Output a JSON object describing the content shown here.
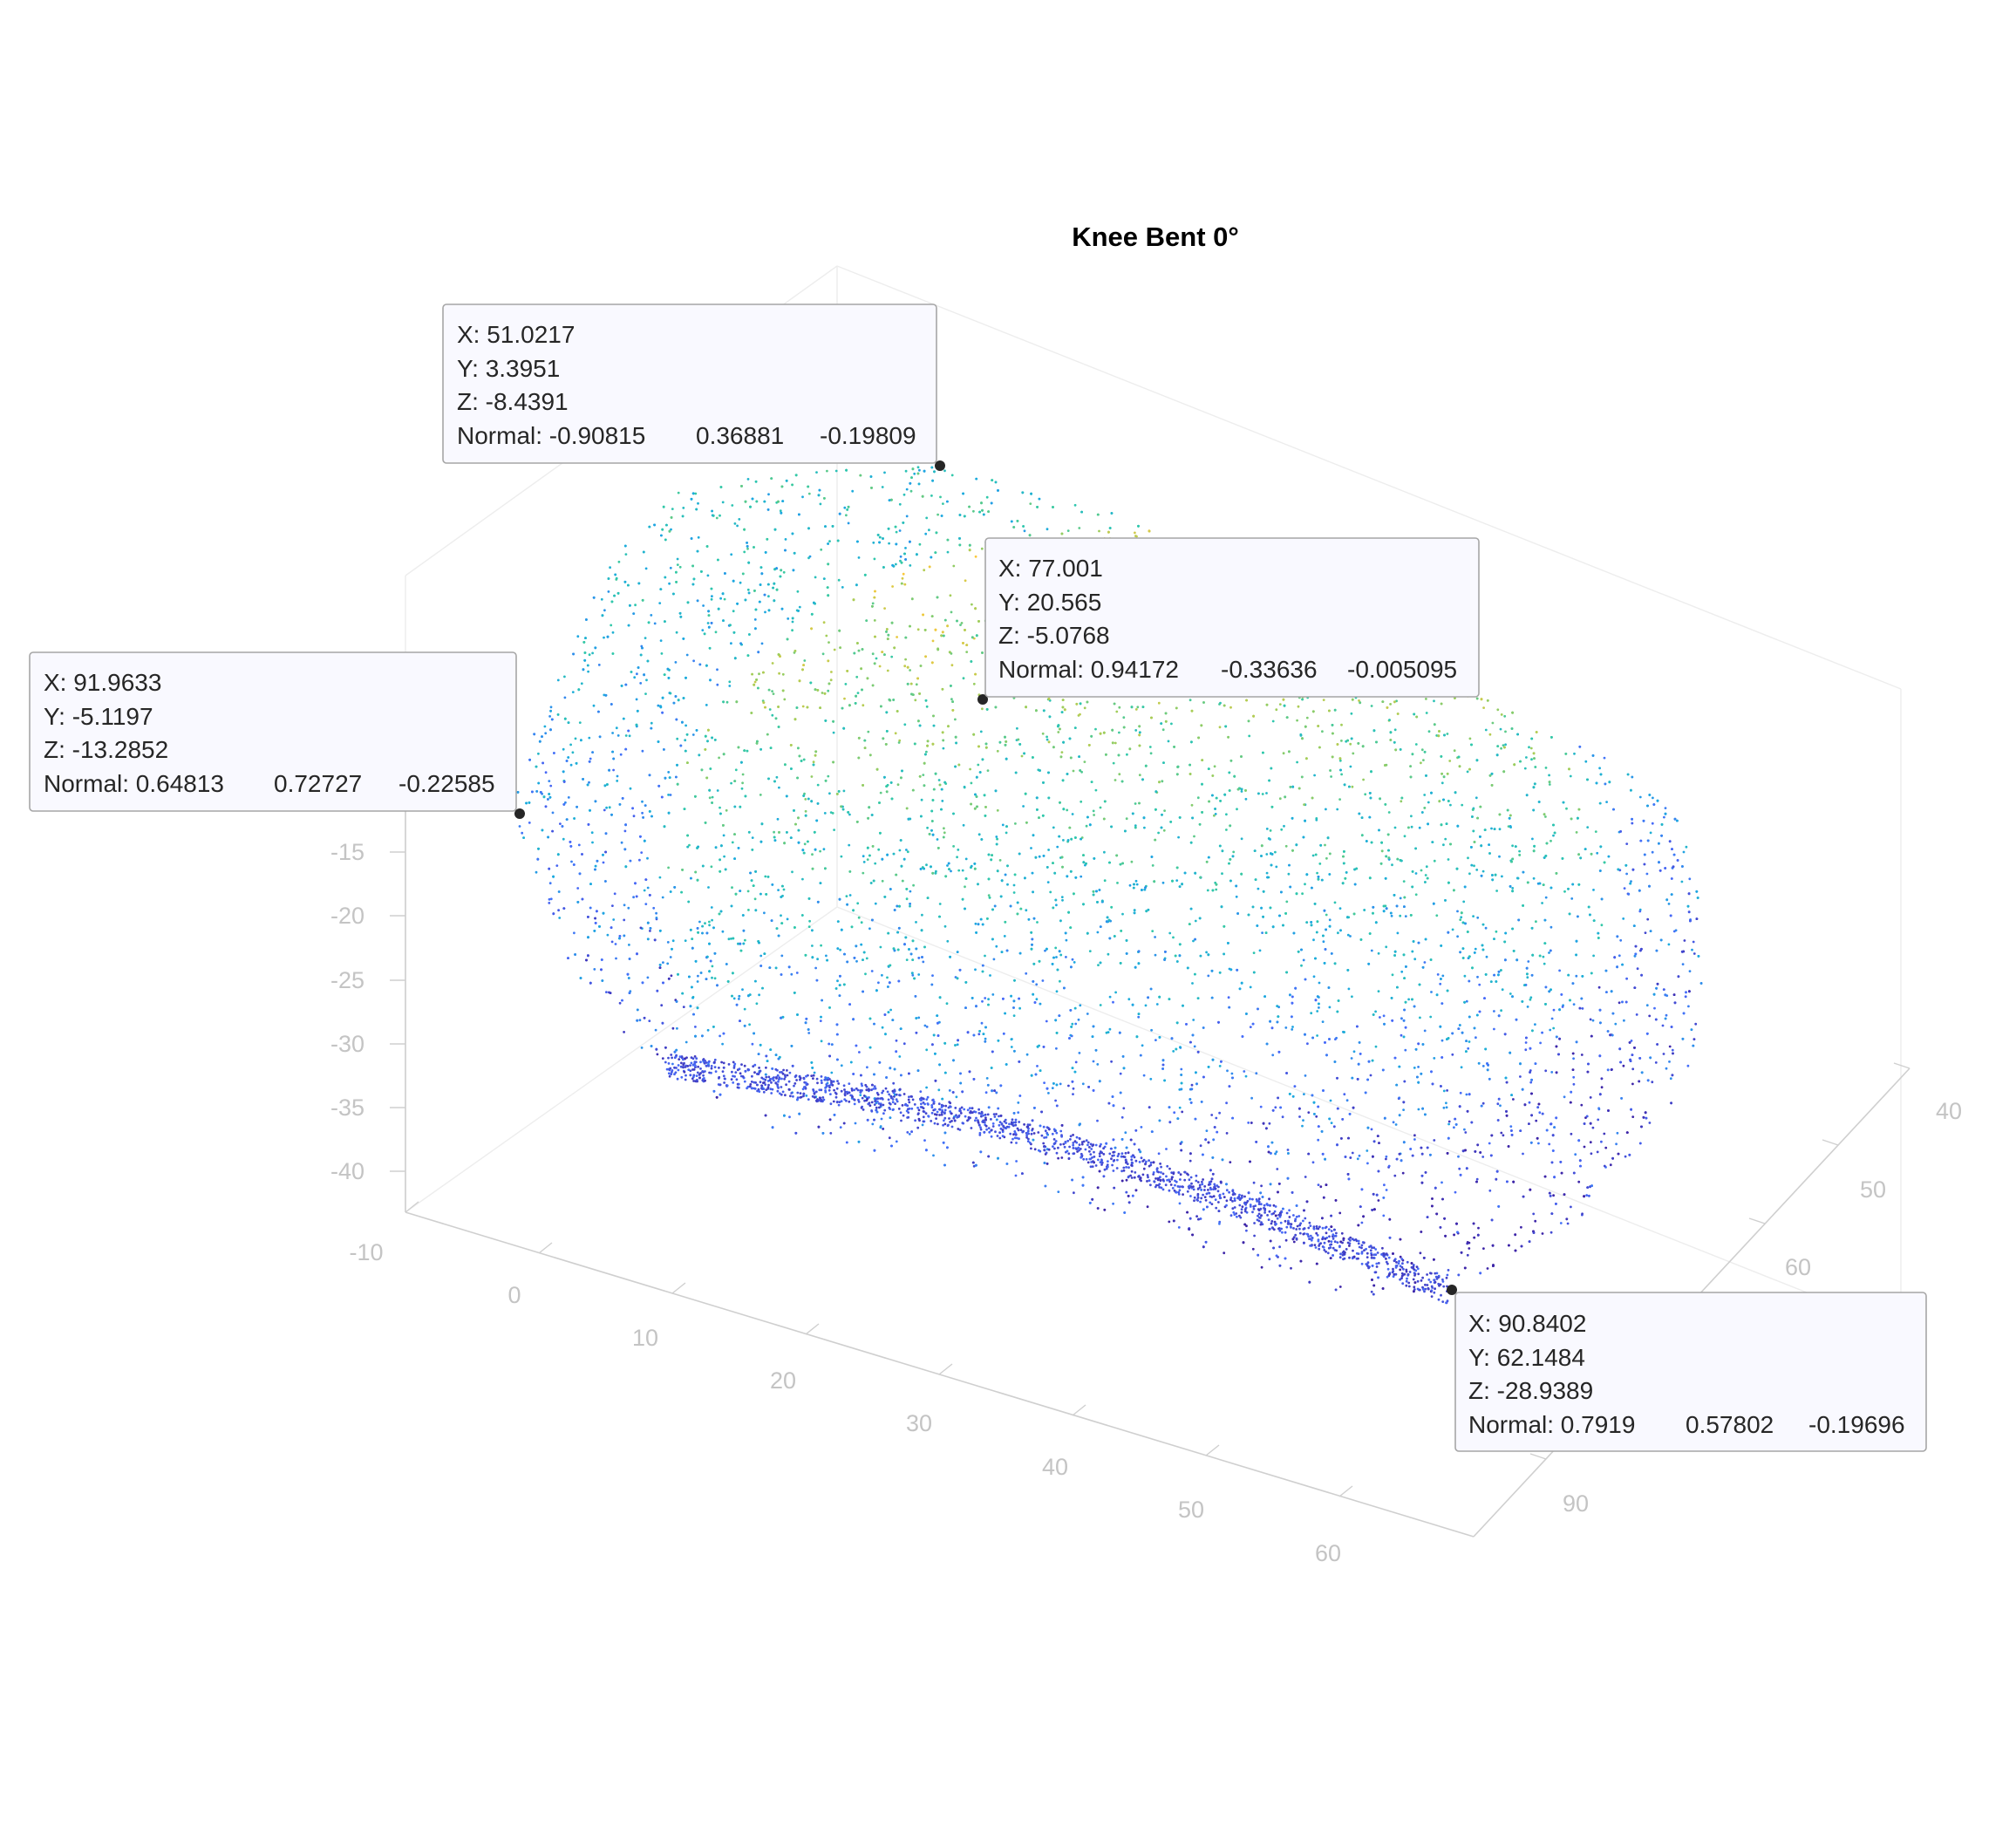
{
  "chart_data": {
    "type": "scatter",
    "projection": "3d",
    "title": "Knee Bent 0°",
    "xlabel": "",
    "ylabel": "",
    "zlabel": "",
    "grid": true,
    "colormap": "parula",
    "x_ticks": [
      "40",
      "50",
      "60",
      "90"
    ],
    "y_ticks": [
      "-10",
      "0",
      "10",
      "20",
      "30",
      "40",
      "50",
      "60"
    ],
    "z_ticks": [
      "-15",
      "-20",
      "-25",
      "-30",
      "-35",
      "-40"
    ],
    "x_range": [
      40,
      95
    ],
    "y_range": [
      -10,
      65
    ],
    "z_range": [
      -42,
      -4
    ],
    "datatips": [
      {
        "id": "tip1",
        "x": 51.0217,
        "y": 3.3951,
        "z": -8.4391,
        "lines": [
          "X: 51.0217",
          "Y: 3.3951",
          "Z: -8.4391",
          "Normal: -0.90815",
          "0.36881",
          "-0.19809"
        ]
      },
      {
        "id": "tip2",
        "x": 77.001,
        "y": 20.565,
        "z": -5.0768,
        "lines": [
          "X: 77.001",
          "Y: 20.565",
          "Z: -5.0768",
          "Normal: 0.94172",
          "-0.33636",
          "-0.005095"
        ]
      },
      {
        "id": "tip3",
        "x": 91.9633,
        "y": -5.1197,
        "z": -13.2852,
        "lines": [
          "X: 91.9633",
          "Y: -5.1197",
          "Z: -13.2852",
          "Normal: 0.64813",
          "0.72727",
          "-0.22585"
        ]
      },
      {
        "id": "tip4",
        "x": 90.8402,
        "y": 62.1484,
        "z": -28.9389,
        "lines": [
          "X: 90.8402",
          "Y: 62.1484",
          "Z: -28.9389",
          "Normal: 0.7919",
          "0.57802",
          "-0.19696"
        ]
      }
    ]
  }
}
